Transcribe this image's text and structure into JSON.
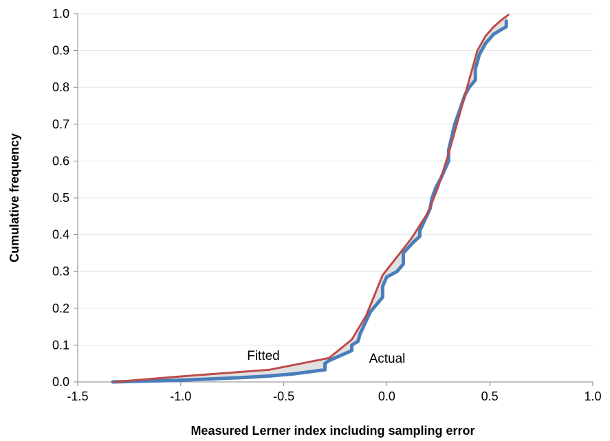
{
  "chart_data": {
    "type": "line",
    "xlabel": "Measured Lerner index including sampling error",
    "ylabel": "Cumulative frequency",
    "xlim": [
      -1.5,
      1.0
    ],
    "ylim": [
      0.0,
      1.0
    ],
    "x_ticks": [
      "-1.5",
      "-1.0",
      "-0.5",
      "0.0",
      "0.5",
      "1.0"
    ],
    "y_ticks": [
      "0.0",
      "0.1",
      "0.2",
      "0.3",
      "0.4",
      "0.5",
      "0.6",
      "0.7",
      "0.8",
      "0.9",
      "1.0"
    ],
    "grid": true,
    "legend": "none",
    "annotations": [
      {
        "text": "Fitted",
        "x": -0.55,
        "y": 0.075
      },
      {
        "text": "Actual",
        "x": -0.08,
        "y": 0.065
      }
    ],
    "series": [
      {
        "name": "Actual",
        "color": "#4a7ebb",
        "x": [
          -1.33,
          -1.1,
          -0.9,
          -0.7,
          -0.57,
          -0.45,
          -0.3,
          -0.3,
          -0.28,
          -0.17,
          -0.17,
          -0.14,
          -0.13,
          -0.08,
          -0.05,
          -0.02,
          -0.02,
          0.0,
          0.05,
          0.08,
          0.08,
          0.13,
          0.16,
          0.16,
          0.21,
          0.22,
          0.24,
          0.26,
          0.3,
          0.3,
          0.33,
          0.38,
          0.4,
          0.43,
          0.43,
          0.45,
          0.48,
          0.52,
          0.55,
          0.58,
          0.58
        ],
        "y": [
          0.0,
          0.003,
          0.007,
          0.012,
          0.016,
          0.022,
          0.033,
          0.05,
          0.058,
          0.085,
          0.1,
          0.11,
          0.13,
          0.19,
          0.21,
          0.23,
          0.26,
          0.285,
          0.3,
          0.32,
          0.35,
          0.38,
          0.395,
          0.41,
          0.47,
          0.5,
          0.53,
          0.55,
          0.6,
          0.63,
          0.7,
          0.78,
          0.8,
          0.82,
          0.85,
          0.89,
          0.92,
          0.945,
          0.955,
          0.965,
          0.98
        ]
      },
      {
        "name": "Fitted",
        "color": "#be4b48",
        "x": [
          -1.32,
          -1.0,
          -0.57,
          -0.28,
          -0.17,
          -0.1,
          -0.02,
          0.05,
          0.12,
          0.2,
          0.25,
          0.3,
          0.35,
          0.4,
          0.44,
          0.48,
          0.52,
          0.55,
          0.59
        ],
        "y": [
          0.0,
          0.015,
          0.033,
          0.065,
          0.115,
          0.18,
          0.29,
          0.34,
          0.39,
          0.46,
          0.53,
          0.62,
          0.72,
          0.82,
          0.9,
          0.94,
          0.965,
          0.98,
          0.997
        ]
      }
    ]
  }
}
